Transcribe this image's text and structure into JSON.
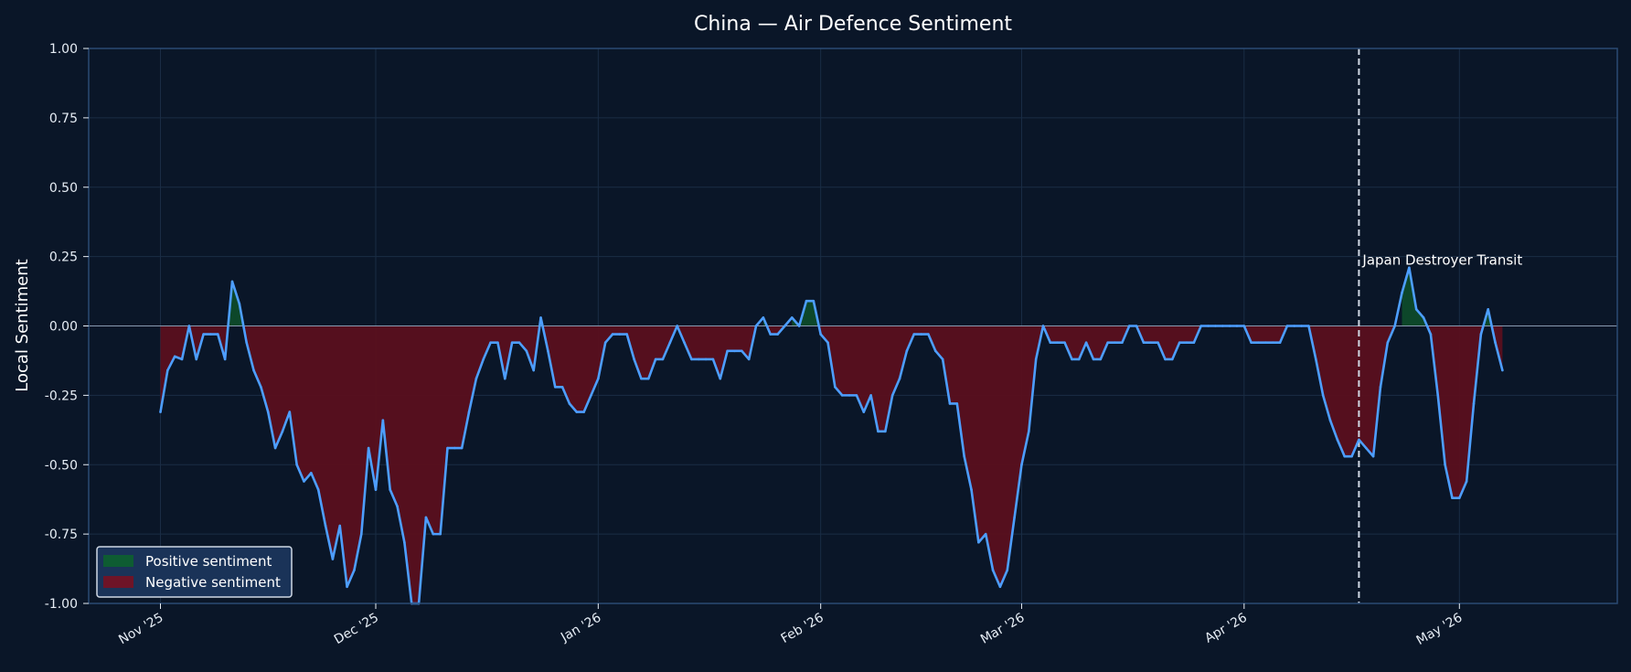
{
  "chart_data": {
    "type": "line",
    "title": "China — Air Defence Sentiment",
    "xlabel": "",
    "ylabel": "Local Sentiment",
    "ylim": [
      -1.0,
      1.0
    ],
    "xlim": [
      "2025-10-22",
      "2026-05-23"
    ],
    "yticks": [
      -1.0,
      -0.75,
      -0.5,
      -0.25,
      0.0,
      0.25,
      0.5,
      0.75,
      1.0
    ],
    "ytick_labels": [
      "-1.00",
      "-0.75",
      "-0.50",
      "-0.25",
      "0.00",
      "0.25",
      "0.50",
      "0.75",
      "1.00"
    ],
    "xticks": [
      "2025-11-01",
      "2025-12-01",
      "2026-01-01",
      "2026-02-01",
      "2026-03-01",
      "2026-04-01",
      "2026-05-01"
    ],
    "xtick_labels": [
      "Nov '25",
      "Dec '25",
      "Jan '26",
      "Feb '26",
      "Mar '26",
      "Apr '26",
      "May '26"
    ],
    "grid": true,
    "legend_position": "bottom-left",
    "colors": {
      "background": "#0a1628",
      "grid": "#1a2d45",
      "spine": "#2b4a73",
      "line": "#4d9eff",
      "positive_fill": "#0e4a2a",
      "negative_fill": "#5a0f1e",
      "zero_line": "#8a9ab0",
      "event_line": "#d0d8e4",
      "legend_bg": "#1a3358",
      "legend_border": "#d0d8e4"
    },
    "legend": [
      {
        "label": "Positive sentiment",
        "color": "#0e5c32"
      },
      {
        "label": "Negative sentiment",
        "color": "#6e1427"
      }
    ],
    "annotations": [
      {
        "type": "vline",
        "x": "2026-04-17",
        "label": "Japan Destroyer Transit"
      }
    ],
    "series": [
      {
        "points": [
          [
            "2025-11-01",
            -0.31
          ],
          [
            "2025-11-02",
            -0.16
          ],
          [
            "2025-11-03",
            -0.11
          ],
          [
            "2025-11-04",
            -0.12
          ],
          [
            "2025-11-05",
            0.0
          ],
          [
            "2025-11-06",
            -0.12
          ],
          [
            "2025-11-07",
            -0.03
          ],
          [
            "2025-11-08",
            -0.03
          ],
          [
            "2025-11-09",
            -0.03
          ],
          [
            "2025-11-10",
            -0.12
          ],
          [
            "2025-11-11",
            0.16
          ],
          [
            "2025-11-12",
            0.08
          ],
          [
            "2025-11-13",
            -0.06
          ],
          [
            "2025-11-14",
            -0.16
          ],
          [
            "2025-11-15",
            -0.22
          ],
          [
            "2025-11-16",
            -0.31
          ],
          [
            "2025-11-17",
            -0.44
          ],
          [
            "2025-11-18",
            -0.38
          ],
          [
            "2025-11-19",
            -0.31
          ],
          [
            "2025-11-20",
            -0.5
          ],
          [
            "2025-11-21",
            -0.56
          ],
          [
            "2025-11-22",
            -0.53
          ],
          [
            "2025-11-23",
            -0.59
          ],
          [
            "2025-11-24",
            -0.72
          ],
          [
            "2025-11-25",
            -0.84
          ],
          [
            "2025-11-26",
            -0.72
          ],
          [
            "2025-11-27",
            -0.94
          ],
          [
            "2025-11-28",
            -0.88
          ],
          [
            "2025-11-29",
            -0.75
          ],
          [
            "2025-11-30",
            -0.44
          ],
          [
            "2025-12-01",
            -0.59
          ],
          [
            "2025-12-02",
            -0.34
          ],
          [
            "2025-12-03",
            -0.59
          ],
          [
            "2025-12-04",
            -0.65
          ],
          [
            "2025-12-05",
            -0.78
          ],
          [
            "2025-12-06",
            -1.0
          ],
          [
            "2025-12-07",
            -1.0
          ],
          [
            "2025-12-08",
            -0.69
          ],
          [
            "2025-12-09",
            -0.75
          ],
          [
            "2025-12-10",
            -0.75
          ],
          [
            "2025-12-11",
            -0.44
          ],
          [
            "2025-12-12",
            -0.44
          ],
          [
            "2025-12-13",
            -0.44
          ],
          [
            "2025-12-14",
            -0.31
          ],
          [
            "2025-12-15",
            -0.19
          ],
          [
            "2025-12-16",
            -0.12
          ],
          [
            "2025-12-17",
            -0.06
          ],
          [
            "2025-12-18",
            -0.06
          ],
          [
            "2025-12-19",
            -0.19
          ],
          [
            "2025-12-20",
            -0.06
          ],
          [
            "2025-12-21",
            -0.06
          ],
          [
            "2025-12-22",
            -0.09
          ],
          [
            "2025-12-23",
            -0.16
          ],
          [
            "2025-12-24",
            0.03
          ],
          [
            "2025-12-25",
            -0.09
          ],
          [
            "2025-12-26",
            -0.22
          ],
          [
            "2025-12-27",
            -0.22
          ],
          [
            "2025-12-28",
            -0.28
          ],
          [
            "2025-12-29",
            -0.31
          ],
          [
            "2025-12-30",
            -0.31
          ],
          [
            "2025-12-31",
            -0.25
          ],
          [
            "2026-01-01",
            -0.19
          ],
          [
            "2026-01-02",
            -0.06
          ],
          [
            "2026-01-03",
            -0.03
          ],
          [
            "2026-01-04",
            -0.03
          ],
          [
            "2026-01-05",
            -0.03
          ],
          [
            "2026-01-06",
            -0.12
          ],
          [
            "2026-01-07",
            -0.19
          ],
          [
            "2026-01-08",
            -0.19
          ],
          [
            "2026-01-09",
            -0.12
          ],
          [
            "2026-01-10",
            -0.12
          ],
          [
            "2026-01-11",
            -0.06
          ],
          [
            "2026-01-12",
            0.0
          ],
          [
            "2026-01-13",
            -0.06
          ],
          [
            "2026-01-14",
            -0.12
          ],
          [
            "2026-01-15",
            -0.12
          ],
          [
            "2026-01-16",
            -0.12
          ],
          [
            "2026-01-17",
            -0.12
          ],
          [
            "2026-01-18",
            -0.19
          ],
          [
            "2026-01-19",
            -0.09
          ],
          [
            "2026-01-20",
            -0.09
          ],
          [
            "2026-01-21",
            -0.09
          ],
          [
            "2026-01-22",
            -0.12
          ],
          [
            "2026-01-23",
            0.0
          ],
          [
            "2026-01-24",
            0.03
          ],
          [
            "2026-01-25",
            -0.03
          ],
          [
            "2026-01-26",
            -0.03
          ],
          [
            "2026-01-27",
            0.0
          ],
          [
            "2026-01-28",
            0.03
          ],
          [
            "2026-01-29",
            0.0
          ],
          [
            "2026-01-30",
            0.09
          ],
          [
            "2026-01-31",
            0.09
          ],
          [
            "2026-02-01",
            -0.03
          ],
          [
            "2026-02-02",
            -0.06
          ],
          [
            "2026-02-03",
            -0.22
          ],
          [
            "2026-02-04",
            -0.25
          ],
          [
            "2026-02-05",
            -0.25
          ],
          [
            "2026-02-06",
            -0.25
          ],
          [
            "2026-02-07",
            -0.31
          ],
          [
            "2026-02-08",
            -0.25
          ],
          [
            "2026-02-09",
            -0.38
          ],
          [
            "2026-02-10",
            -0.38
          ],
          [
            "2026-02-11",
            -0.25
          ],
          [
            "2026-02-12",
            -0.19
          ],
          [
            "2026-02-13",
            -0.09
          ],
          [
            "2026-02-14",
            -0.03
          ],
          [
            "2026-02-15",
            -0.03
          ],
          [
            "2026-02-16",
            -0.03
          ],
          [
            "2026-02-17",
            -0.09
          ],
          [
            "2026-02-18",
            -0.12
          ],
          [
            "2026-02-19",
            -0.28
          ],
          [
            "2026-02-20",
            -0.28
          ],
          [
            "2026-02-21",
            -0.47
          ],
          [
            "2026-02-22",
            -0.59
          ],
          [
            "2026-02-23",
            -0.78
          ],
          [
            "2026-02-24",
            -0.75
          ],
          [
            "2026-02-25",
            -0.88
          ],
          [
            "2026-02-26",
            -0.94
          ],
          [
            "2026-02-27",
            -0.88
          ],
          [
            "2026-02-28",
            -0.69
          ],
          [
            "2026-03-01",
            -0.5
          ],
          [
            "2026-03-02",
            -0.38
          ],
          [
            "2026-03-03",
            -0.12
          ],
          [
            "2026-03-04",
            0.0
          ],
          [
            "2026-03-05",
            -0.06
          ],
          [
            "2026-03-06",
            -0.06
          ],
          [
            "2026-03-07",
            -0.06
          ],
          [
            "2026-03-08",
            -0.12
          ],
          [
            "2026-03-09",
            -0.12
          ],
          [
            "2026-03-10",
            -0.06
          ],
          [
            "2026-03-11",
            -0.12
          ],
          [
            "2026-03-12",
            -0.12
          ],
          [
            "2026-03-13",
            -0.06
          ],
          [
            "2026-03-14",
            -0.06
          ],
          [
            "2026-03-15",
            -0.06
          ],
          [
            "2026-03-16",
            0.0
          ],
          [
            "2026-03-17",
            0.0
          ],
          [
            "2026-03-18",
            -0.06
          ],
          [
            "2026-03-19",
            -0.06
          ],
          [
            "2026-03-20",
            -0.06
          ],
          [
            "2026-03-21",
            -0.12
          ],
          [
            "2026-03-22",
            -0.12
          ],
          [
            "2026-03-23",
            -0.06
          ],
          [
            "2026-03-24",
            -0.06
          ],
          [
            "2026-03-25",
            -0.06
          ],
          [
            "2026-03-26",
            0.0
          ],
          [
            "2026-03-27",
            0.0
          ],
          [
            "2026-03-28",
            0.0
          ],
          [
            "2026-03-29",
            0.0
          ],
          [
            "2026-03-30",
            0.0
          ],
          [
            "2026-03-31",
            0.0
          ],
          [
            "2026-04-01",
            0.0
          ],
          [
            "2026-04-02",
            -0.06
          ],
          [
            "2026-04-03",
            -0.06
          ],
          [
            "2026-04-04",
            -0.06
          ],
          [
            "2026-04-05",
            -0.06
          ],
          [
            "2026-04-06",
            -0.06
          ],
          [
            "2026-04-07",
            0.0
          ],
          [
            "2026-04-08",
            0.0
          ],
          [
            "2026-04-09",
            0.0
          ],
          [
            "2026-04-10",
            0.0
          ],
          [
            "2026-04-11",
            -0.12
          ],
          [
            "2026-04-12",
            -0.25
          ],
          [
            "2026-04-13",
            -0.34
          ],
          [
            "2026-04-14",
            -0.41
          ],
          [
            "2026-04-15",
            -0.47
          ],
          [
            "2026-04-16",
            -0.47
          ],
          [
            "2026-04-17",
            -0.41
          ],
          [
            "2026-04-18",
            -0.44
          ],
          [
            "2026-04-19",
            -0.47
          ],
          [
            "2026-04-20",
            -0.22
          ],
          [
            "2026-04-21",
            -0.06
          ],
          [
            "2026-04-22",
            0.0
          ],
          [
            "2026-04-23",
            0.12
          ],
          [
            "2026-04-24",
            0.21
          ],
          [
            "2026-04-25",
            0.06
          ],
          [
            "2026-04-26",
            0.03
          ],
          [
            "2026-04-27",
            -0.03
          ],
          [
            "2026-04-28",
            -0.25
          ],
          [
            "2026-04-29",
            -0.5
          ],
          [
            "2026-04-30",
            -0.62
          ],
          [
            "2026-05-01",
            -0.62
          ],
          [
            "2026-05-02",
            -0.56
          ],
          [
            "2026-05-03",
            -0.28
          ],
          [
            "2026-05-04",
            -0.03
          ],
          [
            "2026-05-05",
            0.06
          ],
          [
            "2026-05-06",
            -0.06
          ],
          [
            "2026-05-07",
            -0.16
          ]
        ]
      }
    ]
  }
}
